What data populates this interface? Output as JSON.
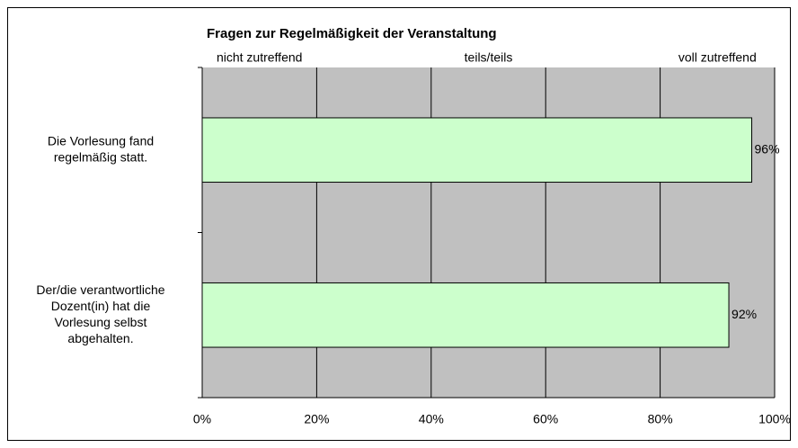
{
  "chart_data": {
    "type": "barh",
    "title": "Fragen zur Regelmäßigkeit der Veranstaltung",
    "scale_labels": [
      "nicht zutreffend",
      "teils/teils",
      "voll zutreffend"
    ],
    "categories": [
      [
        "Die Vorlesung fand",
        "regelmäßig statt."
      ],
      [
        "Der/die verantwortliche",
        "Dozent(in) hat die",
        "Vorlesung selbst",
        "abgehalten."
      ]
    ],
    "values": [
      96,
      92
    ],
    "value_labels": [
      "96%",
      "92%"
    ],
    "color": "#ccffcc",
    "background": "#c0c0c0",
    "xlim": [
      0,
      100
    ],
    "xticks": [
      {
        "value": 0,
        "label": "0%"
      },
      {
        "value": 20,
        "label": "20%"
      },
      {
        "value": 40,
        "label": "40%"
      },
      {
        "value": 60,
        "label": "60%"
      },
      {
        "value": 80,
        "label": "80%"
      },
      {
        "value": 100,
        "label": "100%"
      }
    ],
    "grid": true
  }
}
